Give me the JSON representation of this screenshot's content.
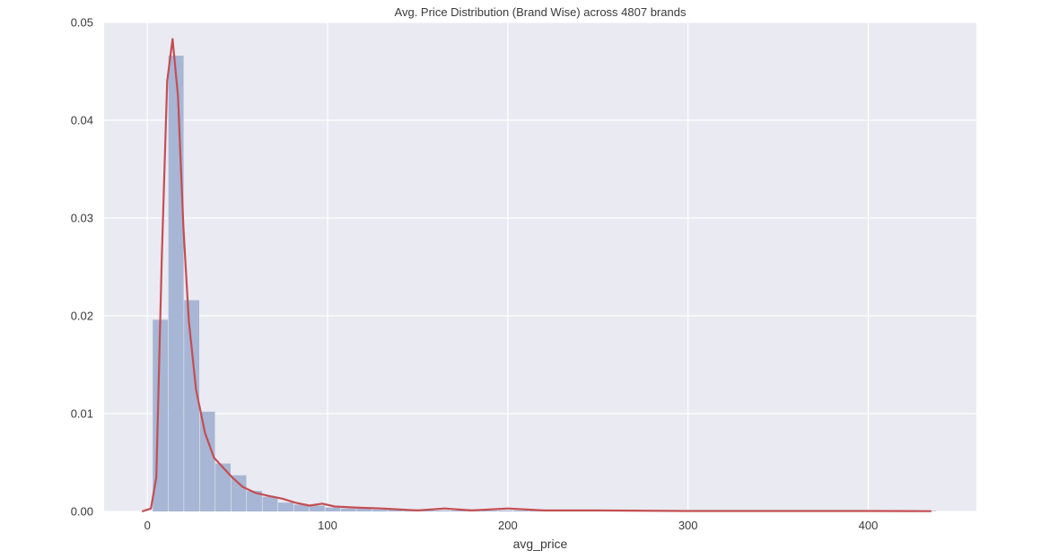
{
  "chart_data": {
    "type": "bar",
    "title": "Avg. Price Distribution (Brand Wise) across 4807 brands",
    "xlabel": "avg_price",
    "ylabel": "",
    "xlim": [
      -24,
      460
    ],
    "ylim": [
      0,
      0.05
    ],
    "grid": true,
    "colors": {
      "background": "#eaeaf2",
      "grid": "#ffffff",
      "bars": "#a7b6d4",
      "kde": "#c44e52"
    },
    "x_ticks": [
      {
        "value": 0,
        "label": "0"
      },
      {
        "value": 100,
        "label": "100"
      },
      {
        "value": 200,
        "label": "200"
      },
      {
        "value": 300,
        "label": "300"
      },
      {
        "value": 400,
        "label": "400"
      }
    ],
    "y_ticks": [
      {
        "value": 0,
        "label": "0.00"
      },
      {
        "value": 0.01,
        "label": "0.01"
      },
      {
        "value": 0.02,
        "label": "0.02"
      },
      {
        "value": 0.03,
        "label": "0.03"
      },
      {
        "value": 0.04,
        "label": "0.04"
      },
      {
        "value": 0.05,
        "label": "0.05"
      }
    ],
    "bin_width": 8.7,
    "bin_start": 3,
    "bars": [
      0.0196,
      0.0466,
      0.0216,
      0.0102,
      0.0049,
      0.0037,
      0.0021,
      0.0015,
      0.0009,
      0.0007,
      0.0006,
      0.0004,
      0.0003,
      0.0003,
      0.0002,
      0.0002,
      0.0002,
      0.0002,
      0.0001,
      0.0001,
      0.0002,
      0.0001,
      0.0001,
      0.0001,
      0.0001,
      5e-05,
      5e-05,
      0.0001,
      5e-05,
      5e-05,
      5e-05,
      5e-05,
      5e-05,
      5e-05,
      5e-05,
      5e-05,
      5e-05,
      5e-05,
      5e-05,
      5e-05,
      5e-05,
      5e-05,
      5e-05,
      5e-05,
      5e-05,
      5e-05,
      5e-05,
      5e-05,
      5e-05,
      5e-05
    ],
    "kde": {
      "x": [
        -3,
        2,
        5,
        8,
        11,
        14,
        17,
        20,
        23,
        27,
        32,
        37,
        42,
        47,
        53,
        60,
        67,
        75,
        82,
        90,
        97,
        104,
        115,
        130,
        150,
        165,
        180,
        200,
        220,
        250,
        300,
        350,
        400,
        435
      ],
      "y": [
        0,
        0.0003,
        0.0035,
        0.026,
        0.044,
        0.0483,
        0.0425,
        0.029,
        0.0195,
        0.0125,
        0.008,
        0.0055,
        0.0045,
        0.0035,
        0.0025,
        0.0019,
        0.0016,
        0.0013,
        0.0009,
        0.0006,
        0.0008,
        0.0005,
        0.0004,
        0.0003,
        0.0001,
        0.0003,
        0.0001,
        0.0003,
        0.0001,
        0.0001,
        5e-05,
        5e-05,
        5e-05,
        3e-05
      ]
    }
  }
}
